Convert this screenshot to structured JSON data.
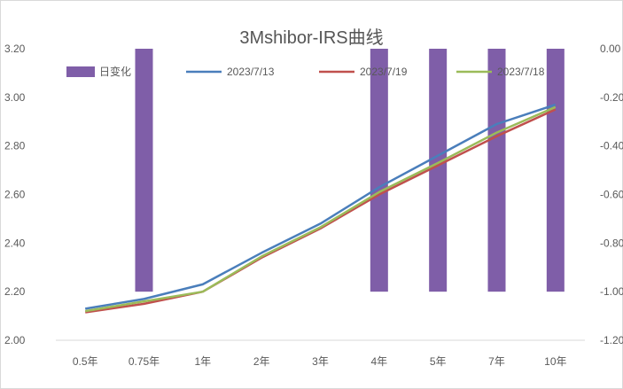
{
  "chart_data": {
    "type": "bar+line",
    "title": "3Mshibor-IRS曲线",
    "categories": [
      "0.5年",
      "0.75年",
      "1年",
      "2年",
      "3年",
      "4年",
      "5年",
      "7年",
      "10年"
    ],
    "bar_series": {
      "name": "日变化",
      "axis": "right",
      "values": [
        0,
        -1.0,
        0,
        0,
        0,
        -1.0,
        -1.0,
        -1.0,
        -1.0
      ],
      "color": "#7f5ea8"
    },
    "line_series": [
      {
        "name": "2023/7/13",
        "color": "#4a7ebb",
        "values": [
          2.13,
          2.17,
          2.23,
          2.36,
          2.48,
          2.63,
          2.76,
          2.89,
          2.97
        ]
      },
      {
        "name": "2023/7/19",
        "color": "#c0504d",
        "values": [
          2.115,
          2.15,
          2.2,
          2.34,
          2.46,
          2.6,
          2.72,
          2.84,
          2.95
        ]
      },
      {
        "name": "2023/7/18",
        "color": "#9bbb59",
        "values": [
          2.12,
          2.16,
          2.2,
          2.345,
          2.465,
          2.61,
          2.73,
          2.855,
          2.96
        ]
      }
    ],
    "y_left": {
      "min": 2.0,
      "max": 3.2,
      "ticks": [
        "2.00",
        "2.20",
        "2.40",
        "2.60",
        "2.80",
        "3.00",
        "3.20"
      ]
    },
    "y_right": {
      "min": -1.2,
      "max": 0.0,
      "ticks": [
        "-1.20",
        "-1.00",
        "-0.80",
        "-0.60",
        "-0.40",
        "-0.20",
        "0.00"
      ]
    },
    "legend_position": "top",
    "grid": false
  }
}
